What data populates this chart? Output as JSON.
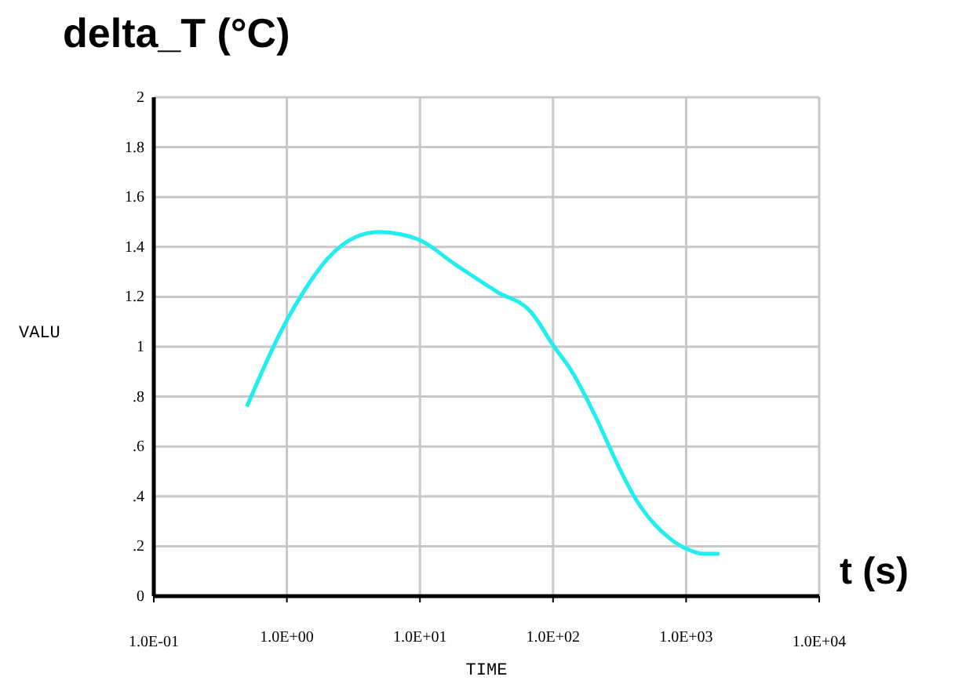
{
  "chart_data": {
    "type": "line",
    "title": "delta_T  (°C)",
    "xlabel": "TIME",
    "ylabel": "VALU",
    "annotations": [
      "t (s)"
    ],
    "log": "x",
    "grid": true,
    "marker": "none",
    "line_style": "solid",
    "xlim": [
      0.1,
      10000
    ],
    "xticks": [
      {
        "value": 0.1,
        "label": "1.0E-01"
      },
      {
        "value": 1,
        "label": "1.0E+00"
      },
      {
        "value": 10,
        "label": "1.0E+01"
      },
      {
        "value": 100,
        "label": "1.0E+02"
      },
      {
        "value": 1000,
        "label": "1.0E+03"
      },
      {
        "value": 10000,
        "label": "1.0E+04"
      }
    ],
    "ylim": [
      0,
      2
    ],
    "yticks": [
      0,
      {
        "value": 0.2,
        "label": ".2"
      },
      {
        "value": 0.4,
        "label": ".4"
      },
      {
        "value": 0.6,
        "label": ".6"
      },
      {
        "value": 0.8,
        "label": ".8"
      },
      1,
      1.2,
      1.4,
      1.6,
      1.8,
      2
    ],
    "x": [
      0.5,
      0.92,
      1.45,
      2.0,
      3.3,
      4.9,
      9.7,
      18.4,
      38,
      68,
      102,
      135,
      213,
      304,
      417,
      575,
      760,
      1000,
      1350,
      1780
    ],
    "series": [
      {
        "color": "#22eef0",
        "values": [
          0.76,
          1.07,
          1.25,
          1.35,
          1.44,
          1.46,
          1.43,
          1.33,
          1.22,
          1.14,
          1.0,
          0.91,
          0.71,
          0.53,
          0.39,
          0.29,
          0.23,
          0.19,
          0.17,
          0.17
        ]
      }
    ]
  }
}
